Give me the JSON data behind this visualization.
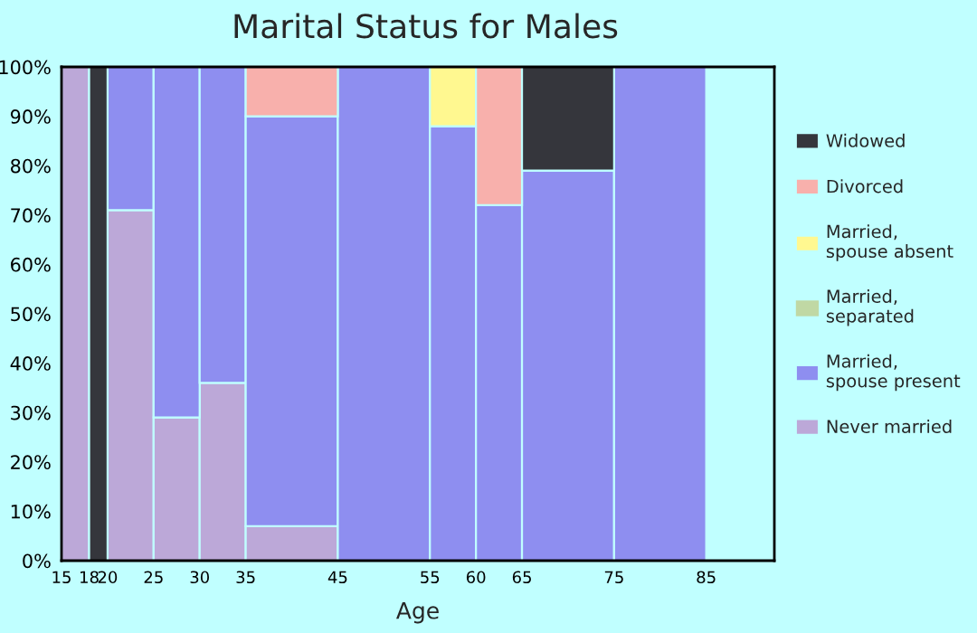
{
  "chart_data": {
    "type": "bar",
    "title": "Marital Status for Males",
    "xlabel": "Age",
    "stacked": true,
    "x": [
      16.5,
      19,
      22.5,
      27.5,
      32.5,
      40,
      50,
      57.5,
      62.5,
      70,
      80
    ],
    "series": [
      {
        "name": "Never married",
        "color": "#bca8d8",
        "values": [
          100,
          0,
          71,
          29,
          36,
          7,
          0,
          0,
          0,
          0,
          0
        ]
      },
      {
        "name": "Married, spouse present",
        "color": "#8e8ef0",
        "values": [
          0,
          0,
          29,
          71,
          64,
          83,
          100,
          88,
          72,
          79,
          100
        ]
      },
      {
        "name": "Married, separated",
        "color": "#c0d8a4",
        "values": [
          0,
          0,
          0,
          0,
          0,
          0,
          0,
          0,
          0,
          0,
          0
        ]
      },
      {
        "name": "Married, spouse absent",
        "color": "#fff890",
        "values": [
          0,
          0,
          0,
          0,
          0,
          0,
          0,
          12,
          0,
          0,
          0
        ]
      },
      {
        "name": "Divorced",
        "color": "#f8b0ac",
        "values": [
          0,
          0,
          0,
          0,
          0,
          10,
          0,
          0,
          28,
          0,
          0
        ]
      },
      {
        "name": "Widowed",
        "color": "#35363c",
        "values": [
          0,
          100,
          0,
          0,
          0,
          0,
          0,
          0,
          0,
          21,
          0
        ]
      }
    ],
    "xlim": [
      15,
      92.4
    ],
    "xticks": [
      15,
      18,
      20,
      25,
      30,
      35,
      45,
      55,
      60,
      65,
      75,
      85
    ],
    "ylim": [
      0,
      100
    ],
    "yticks": [
      {
        "value": 0,
        "label": "0%"
      },
      {
        "value": 10,
        "label": "10%"
      },
      {
        "value": 20,
        "label": "20%"
      },
      {
        "value": 30,
        "label": "30%"
      },
      {
        "value": 40,
        "label": "40%"
      },
      {
        "value": 50,
        "label": "50%"
      },
      {
        "value": 60,
        "label": "60%"
      },
      {
        "value": 70,
        "label": "70%"
      },
      {
        "value": 80,
        "label": "80%"
      },
      {
        "value": 90,
        "label": "90%"
      },
      {
        "value": 100,
        "label": "100%"
      }
    ],
    "legend": "right"
  }
}
